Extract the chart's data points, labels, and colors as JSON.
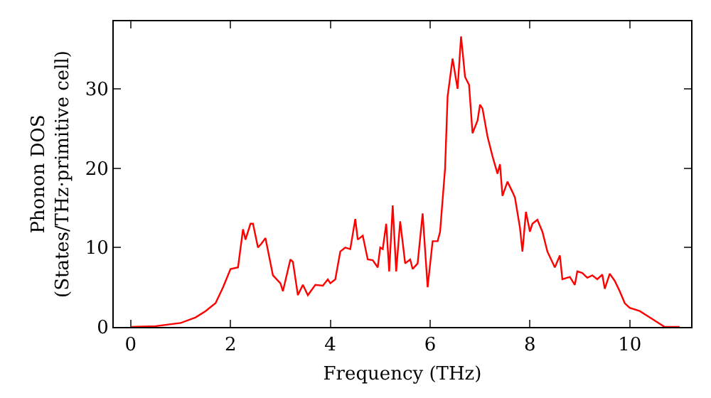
{
  "chart_data": {
    "type": "line",
    "xlabel": "Frequency (THz)",
    "ylabel": "Phonon DOS\n(States/THz·primitive cell)",
    "x": [
      0,
      0.5,
      1.0,
      1.3,
      1.5,
      1.7,
      1.85,
      2.0,
      2.15,
      2.25,
      2.3,
      2.4,
      2.45,
      2.55,
      2.62,
      2.7,
      2.85,
      3.0,
      3.05,
      3.2,
      3.25,
      3.35,
      3.45,
      3.55,
      3.7,
      3.85,
      3.95,
      4.0,
      4.1,
      4.2,
      4.3,
      4.4,
      4.5,
      4.55,
      4.65,
      4.75,
      4.85,
      4.95,
      5.0,
      5.05,
      5.12,
      5.18,
      5.25,
      5.32,
      5.4,
      5.5,
      5.6,
      5.65,
      5.75,
      5.85,
      5.95,
      6.05,
      6.15,
      6.2,
      6.3,
      6.35,
      6.45,
      6.55,
      6.62,
      6.7,
      6.78,
      6.85,
      6.95,
      7.0,
      7.05,
      7.15,
      7.25,
      7.35,
      7.4,
      7.45,
      7.55,
      7.65,
      7.7,
      7.8,
      7.85,
      7.92,
      8.0,
      8.05,
      8.15,
      8.25,
      8.35,
      8.5,
      8.6,
      8.65,
      8.8,
      8.9,
      8.95,
      9.05,
      9.15,
      9.25,
      9.35,
      9.45,
      9.5,
      9.6,
      9.7,
      9.8,
      9.9,
      10.0,
      10.2,
      10.4,
      10.6,
      10.7,
      11.0
    ],
    "series": [
      {
        "color": "#ff0000",
        "values": [
          0,
          0.1,
          0.5,
          1.2,
          2,
          3,
          5,
          7.3,
          7.5,
          12.3,
          11,
          13,
          13,
          10,
          10.5,
          11.2,
          6.5,
          5.5,
          4.5,
          8.5,
          8.2,
          4,
          5.3,
          4,
          5.3,
          5.2,
          6,
          5.5,
          6,
          9.5,
          10,
          9.8,
          13.6,
          11,
          11.5,
          8.5,
          8.4,
          7.5,
          10,
          9.8,
          13,
          7,
          15.3,
          7,
          13.3,
          8,
          8.5,
          7.3,
          8,
          14.3,
          5,
          10.8,
          10.8,
          12,
          20,
          29,
          33.8,
          30,
          36.6,
          31.5,
          30.5,
          24.4,
          26,
          28,
          27.5,
          24,
          21.5,
          19.3,
          20.5,
          16.5,
          18.3,
          17,
          16.3,
          12.5,
          9.5,
          14.5,
          12,
          13,
          13.5,
          12,
          9.5,
          7.5,
          9,
          6,
          6.3,
          5.3,
          7,
          6.8,
          6.2,
          6.5,
          6,
          6.6,
          4.8,
          6.7,
          5.8,
          4.5,
          3,
          2.4,
          2,
          1.2,
          0.4,
          0,
          0
        ]
      }
    ],
    "xlim": [
      -0.34,
      11.23
    ],
    "ylim": [
      0,
      38.5
    ],
    "xticks": [
      0,
      2,
      4,
      6,
      8,
      10
    ],
    "yticks": [
      0,
      10,
      20,
      30
    ],
    "grid": false,
    "legend": false,
    "marker": "none",
    "line_style": "solid"
  }
}
